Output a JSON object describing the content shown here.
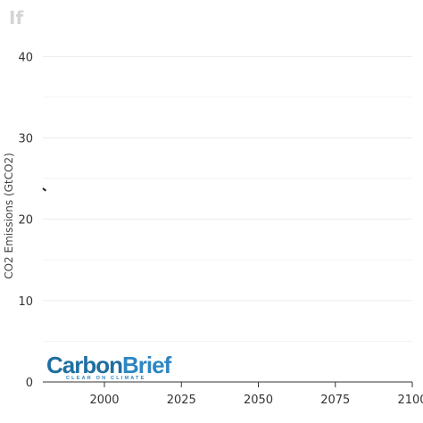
{
  "title": "If",
  "chart_data": {
    "type": "line",
    "title": "If",
    "xlabel": "",
    "ylabel": "CO2 Emissions (GtCO2)",
    "xlim": [
      1980,
      2100
    ],
    "ylim": [
      0,
      43
    ],
    "x_ticks": [
      2000,
      2025,
      2050,
      2075,
      2100
    ],
    "y_ticks": [
      0,
      10,
      20,
      30,
      40
    ],
    "grid": true,
    "series": [
      {
        "x": [
          1980,
          1981
        ],
        "y": [
          23.8,
          23.5
        ],
        "color": "#222222"
      }
    ]
  },
  "logo": {
    "name": "CarbonBrief",
    "tagline": "CLEAR ON CLIMATE",
    "colors": {
      "carbon": "#1f6fa0",
      "brief": "#2e86c1",
      "tagline": "#2e86c1"
    }
  }
}
